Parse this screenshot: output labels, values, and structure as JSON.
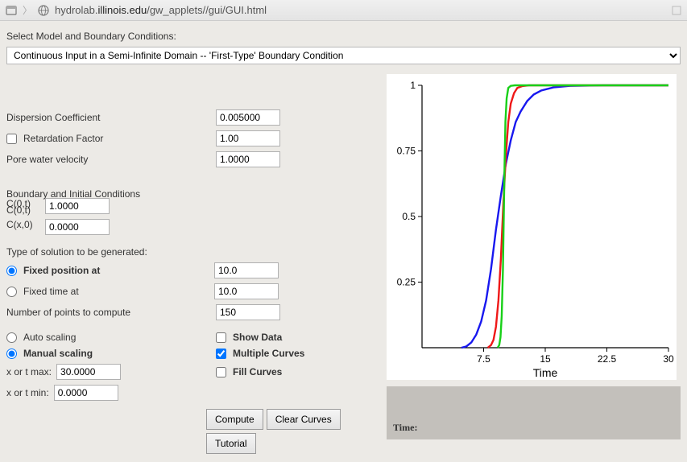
{
  "browser": {
    "url_prefix": "hydrolab.",
    "url_domain": "illinois.edu",
    "url_path": "/gw_applets//gui/GUI.html"
  },
  "header": {
    "select_label": "Select Model and Boundary Conditions:",
    "model_value": "Continuous Input in a Semi-Infinite Domain -- 'First-Type' Boundary Condition"
  },
  "params": {
    "dispersion_label": "Dispersion Coefficient",
    "dispersion_value": "0.005000",
    "retardation_label": "Retardation Factor",
    "retardation_checked": false,
    "retardation_value": "1.00",
    "pore_label": "Pore water velocity",
    "pore_value": "1.0000"
  },
  "bc": {
    "header": "Boundary and Initial Conditions",
    "c0t_label": "C(0,t)",
    "c0t_value": "1.0000",
    "cx0_label": "C(x,0)",
    "cx0_value": "0.0000"
  },
  "solution": {
    "header": "Type of solution to be generated:",
    "fixed_pos_label": "Fixed position at",
    "fixed_pos_value": "10.0",
    "fixed_time_label": "Fixed time at",
    "fixed_time_value": "10.0",
    "selected": "position",
    "npoints_label": "Number of points to compute",
    "npoints_value": "150"
  },
  "scaling": {
    "auto_label": "Auto scaling",
    "manual_label": "Manual scaling",
    "selected": "manual",
    "show_data_label": "Show Data",
    "show_data": false,
    "multi_curves_label": "Multiple Curves",
    "multi_curves": true,
    "fill_curves_label": "Fill Curves",
    "fill_curves": false,
    "xmax_label": "x or t max:",
    "xmax_value": "30.0000",
    "xmin_label": "x or t min:",
    "xmin_value": "0.0000"
  },
  "buttons": {
    "compute": "Compute",
    "clear": "Clear Curves",
    "tutorial": "Tutorial"
  },
  "chart": {
    "type": "line",
    "x_axis_title": "Time",
    "xlim": [
      0,
      30
    ],
    "ylim": [
      0,
      1
    ],
    "xticks": [
      7.5,
      15,
      22.5,
      30
    ],
    "yticks": [
      0.25,
      0.5,
      0.75,
      1
    ],
    "background_color": "#ffffff",
    "axis_color": "#000000",
    "line_width": 2.4,
    "series": [
      {
        "name": "blue",
        "color": "#1818ef",
        "points": [
          [
            4.8,
            0.0
          ],
          [
            5.4,
            0.005
          ],
          [
            6.0,
            0.02
          ],
          [
            6.6,
            0.05
          ],
          [
            7.2,
            0.1
          ],
          [
            7.8,
            0.18
          ],
          [
            8.4,
            0.3
          ],
          [
            9.0,
            0.45
          ],
          [
            9.6,
            0.58
          ],
          [
            10.2,
            0.7
          ],
          [
            10.8,
            0.79
          ],
          [
            11.4,
            0.86
          ],
          [
            12.0,
            0.9
          ],
          [
            12.8,
            0.94
          ],
          [
            13.6,
            0.965
          ],
          [
            14.5,
            0.98
          ],
          [
            16.0,
            0.992
          ],
          [
            18.0,
            0.998
          ],
          [
            22.0,
            1.0
          ],
          [
            30.0,
            1.0
          ]
        ]
      },
      {
        "name": "red",
        "color": "#ef1818",
        "points": [
          [
            8.0,
            0.0
          ],
          [
            8.4,
            0.01
          ],
          [
            8.7,
            0.03
          ],
          [
            9.0,
            0.08
          ],
          [
            9.3,
            0.18
          ],
          [
            9.6,
            0.34
          ],
          [
            9.9,
            0.55
          ],
          [
            10.2,
            0.73
          ],
          [
            10.5,
            0.86
          ],
          [
            10.8,
            0.93
          ],
          [
            11.2,
            0.97
          ],
          [
            11.6,
            0.99
          ],
          [
            12.2,
            0.997
          ],
          [
            13.0,
            1.0
          ],
          [
            30.0,
            1.0
          ]
        ]
      },
      {
        "name": "green",
        "color": "#18d018",
        "points": [
          [
            9.2,
            0.0
          ],
          [
            9.4,
            0.01
          ],
          [
            9.55,
            0.04
          ],
          [
            9.7,
            0.12
          ],
          [
            9.85,
            0.3
          ],
          [
            9.95,
            0.5
          ],
          [
            10.05,
            0.7
          ],
          [
            10.15,
            0.86
          ],
          [
            10.3,
            0.95
          ],
          [
            10.5,
            0.99
          ],
          [
            10.8,
            0.998
          ],
          [
            11.3,
            1.0
          ],
          [
            30.0,
            1.0
          ]
        ]
      }
    ]
  },
  "status": {
    "time_label": "Time:"
  }
}
